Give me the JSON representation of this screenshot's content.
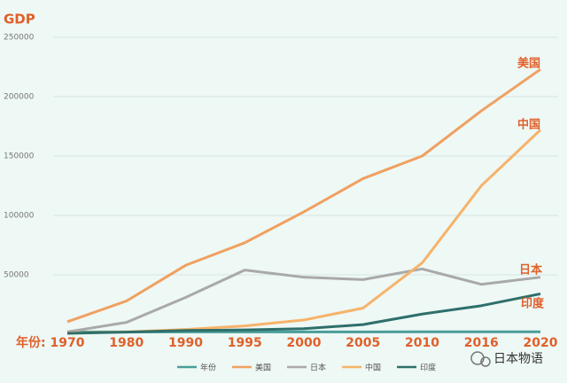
{
  "chart_data": {
    "type": "line",
    "title": "GDP",
    "x_label": "年份:",
    "categories": [
      "1970",
      "1980",
      "1990",
      "1995",
      "2000",
      "2005",
      "2010",
      "2016",
      "2020"
    ],
    "series": [
      {
        "name": "年份",
        "color": "#4a9e9a",
        "values": [
          1970,
          1980,
          1990,
          1995,
          2000,
          2005,
          2010,
          2016,
          2020
        ]
      },
      {
        "name": "美国",
        "color": "#f0a060",
        "values": [
          10500,
          28000,
          58000,
          77000,
          103000,
          131000,
          150000,
          188000,
          223000
        ]
      },
      {
        "name": "日本",
        "color": "#a9a9a9",
        "values": [
          2000,
          10000,
          31000,
          54000,
          48000,
          46000,
          55000,
          42000,
          48000
        ]
      },
      {
        "name": "中国",
        "color": "#f7b36a",
        "values": [
          1000,
          2000,
          4000,
          7000,
          12000,
          22000,
          60000,
          125000,
          172000
        ]
      },
      {
        "name": "印度",
        "color": "#2e6f6a",
        "values": [
          700,
          1800,
          3200,
          3600,
          4700,
          8100,
          17000,
          24000,
          34000
        ]
      }
    ],
    "ylim": [
      0,
      250000
    ],
    "yticks": [
      50000,
      100000,
      150000,
      200000,
      250000
    ],
    "grid": true,
    "annotations": [
      "美国",
      "中国",
      "日本",
      "印度"
    ],
    "watermark": "日本物语"
  }
}
